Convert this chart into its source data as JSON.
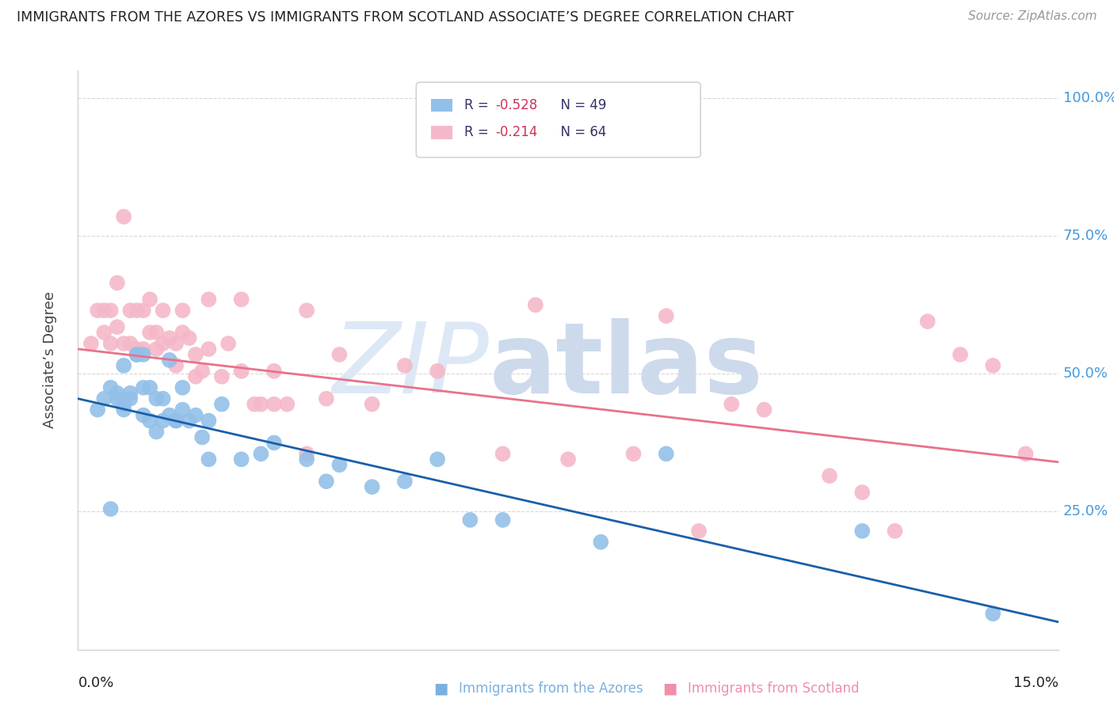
{
  "title": "IMMIGRANTS FROM THE AZORES VS IMMIGRANTS FROM SCOTLAND ASSOCIATE’S DEGREE CORRELATION CHART",
  "source_text": "Source: ZipAtlas.com",
  "ylabel": "Associate’s Degree",
  "xmin": 0.0,
  "xmax": 0.15,
  "ymin": 0.0,
  "ymax": 1.05,
  "ytick_positions": [
    0.0,
    0.25,
    0.5,
    0.75,
    1.0
  ],
  "ytick_labels": [
    "",
    "25.0%",
    "50.0%",
    "75.0%",
    "100.0%"
  ],
  "azores_color": "#92c0e8",
  "scotland_color": "#f5b8c8",
  "azores_line_color": "#1a5fa8",
  "scotland_line_color": "#e8728a",
  "background_color": "#ffffff",
  "grid_color": "#d8d8d8",
  "watermark_zip": "ZIP",
  "watermark_atlas": "atlas",
  "watermark_color": "#dce8f5",
  "title_color": "#222222",
  "source_color": "#999999",
  "ylabel_color": "#444444",
  "right_tick_color": "#4499dd",
  "legend_r1": "R = ",
  "legend_v1": "-0.528",
  "legend_n1": "  N = 49",
  "legend_r2": "R = ",
  "legend_v2": "-0.214",
  "legend_n2": "  N = 64",
  "legend_color1": "#333366",
  "legend_color2": "#cc4466",
  "legend_val_color1": "#cc4466",
  "legend_val_color2": "#cc4466",
  "bottom_label1": "Immigrants from the Azores",
  "bottom_label2": "Immigrants from Scotland",
  "bottom_label1_color": "#7ab0e0",
  "bottom_label2_color": "#f090a8",
  "azores_x": [
    0.003,
    0.004,
    0.005,
    0.005,
    0.006,
    0.006,
    0.007,
    0.007,
    0.007,
    0.008,
    0.008,
    0.009,
    0.009,
    0.01,
    0.01,
    0.01,
    0.011,
    0.011,
    0.012,
    0.012,
    0.013,
    0.013,
    0.014,
    0.014,
    0.015,
    0.015,
    0.016,
    0.016,
    0.017,
    0.018,
    0.019,
    0.02,
    0.02,
    0.022,
    0.025,
    0.028,
    0.03,
    0.035,
    0.038,
    0.04,
    0.045,
    0.05,
    0.055,
    0.06,
    0.065,
    0.08,
    0.09,
    0.12,
    0.14
  ],
  "azores_y": [
    0.435,
    0.455,
    0.255,
    0.475,
    0.455,
    0.465,
    0.435,
    0.445,
    0.515,
    0.455,
    0.465,
    0.535,
    0.535,
    0.475,
    0.425,
    0.535,
    0.415,
    0.475,
    0.395,
    0.455,
    0.415,
    0.455,
    0.425,
    0.525,
    0.415,
    0.415,
    0.435,
    0.475,
    0.415,
    0.425,
    0.385,
    0.415,
    0.345,
    0.445,
    0.345,
    0.355,
    0.375,
    0.345,
    0.305,
    0.335,
    0.295,
    0.305,
    0.345,
    0.235,
    0.235,
    0.195,
    0.355,
    0.215,
    0.065
  ],
  "scotland_x": [
    0.002,
    0.003,
    0.004,
    0.004,
    0.005,
    0.005,
    0.006,
    0.006,
    0.007,
    0.007,
    0.008,
    0.008,
    0.009,
    0.009,
    0.01,
    0.01,
    0.011,
    0.011,
    0.012,
    0.012,
    0.013,
    0.013,
    0.014,
    0.015,
    0.015,
    0.016,
    0.016,
    0.017,
    0.018,
    0.018,
    0.019,
    0.02,
    0.02,
    0.022,
    0.023,
    0.025,
    0.025,
    0.027,
    0.028,
    0.03,
    0.03,
    0.032,
    0.035,
    0.035,
    0.038,
    0.04,
    0.045,
    0.05,
    0.055,
    0.065,
    0.07,
    0.075,
    0.085,
    0.09,
    0.095,
    0.1,
    0.105,
    0.115,
    0.12,
    0.125,
    0.13,
    0.135,
    0.14,
    0.145
  ],
  "scotland_y": [
    0.555,
    0.615,
    0.575,
    0.615,
    0.555,
    0.615,
    0.585,
    0.665,
    0.555,
    0.785,
    0.555,
    0.615,
    0.545,
    0.615,
    0.545,
    0.615,
    0.575,
    0.635,
    0.545,
    0.575,
    0.555,
    0.615,
    0.565,
    0.555,
    0.515,
    0.575,
    0.615,
    0.565,
    0.535,
    0.495,
    0.505,
    0.545,
    0.635,
    0.495,
    0.555,
    0.505,
    0.635,
    0.445,
    0.445,
    0.505,
    0.445,
    0.445,
    0.355,
    0.615,
    0.455,
    0.535,
    0.445,
    0.515,
    0.505,
    0.355,
    0.625,
    0.345,
    0.355,
    0.605,
    0.215,
    0.445,
    0.435,
    0.315,
    0.285,
    0.215,
    0.595,
    0.535,
    0.515,
    0.355
  ],
  "azores_line_x0": 0.0,
  "azores_line_y0": 0.455,
  "azores_line_x1": 0.15,
  "azores_line_y1": 0.05,
  "scotland_line_x0": 0.0,
  "scotland_line_y0": 0.545,
  "scotland_line_x1": 0.15,
  "scotland_line_y1": 0.34
}
